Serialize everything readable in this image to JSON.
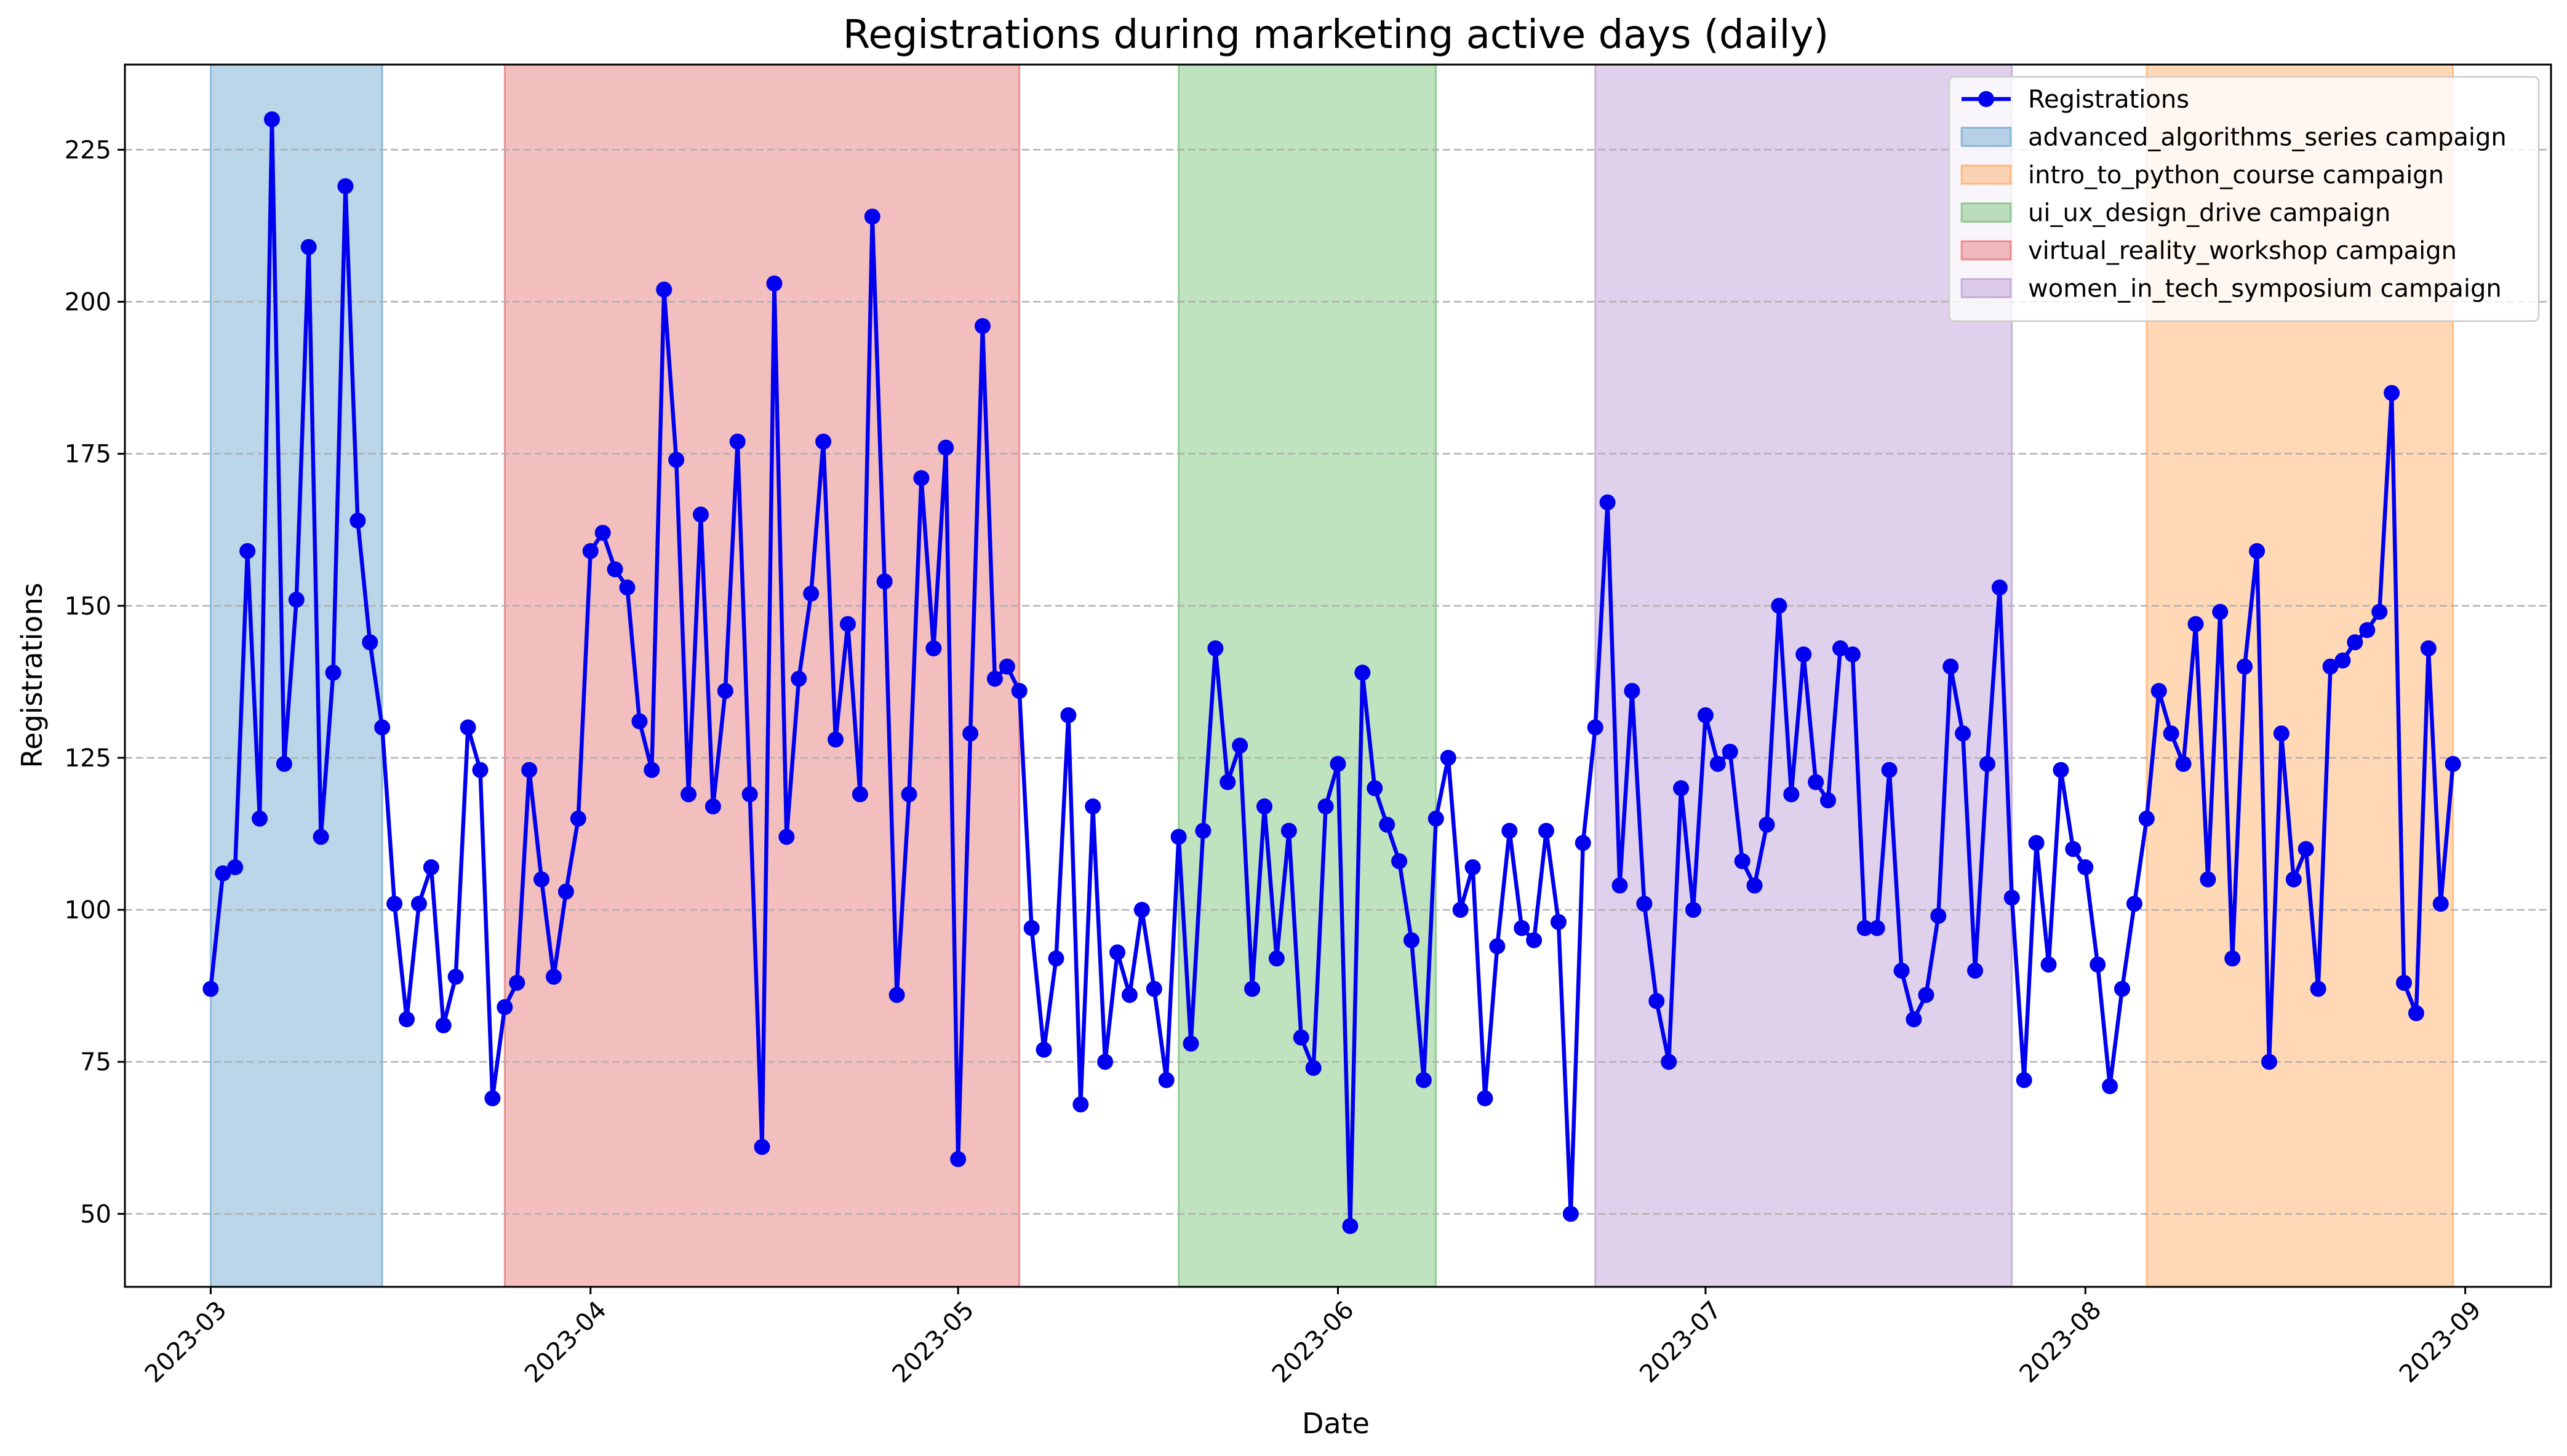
{
  "chart_data": {
    "type": "line",
    "title": "Registrations during marketing active days (daily)",
    "xlabel": "Date",
    "ylabel": "Registrations",
    "x_range": [
      "2023-02-22",
      "2023-09-08"
    ],
    "ylim": [
      38,
      239
    ],
    "grid": {
      "axis": "y",
      "style": "dashed"
    },
    "legend_position": "top-right",
    "x_ticks": [
      {
        "date": "2023-03-01",
        "label": "2023-03"
      },
      {
        "date": "2023-04-01",
        "label": "2023-04"
      },
      {
        "date": "2023-05-01",
        "label": "2023-05"
      },
      {
        "date": "2023-06-01",
        "label": "2023-06"
      },
      {
        "date": "2023-07-01",
        "label": "2023-07"
      },
      {
        "date": "2023-08-01",
        "label": "2023-08"
      },
      {
        "date": "2023-09-01",
        "label": "2023-09"
      }
    ],
    "y_ticks": [
      50,
      75,
      100,
      125,
      150,
      175,
      200,
      225
    ],
    "series": [
      {
        "name": "Registrations",
        "color": "#0000ee",
        "start_date": "2023-03-01",
        "values": [
          87,
          106,
          107,
          159,
          115,
          230,
          124,
          151,
          209,
          112,
          139,
          219,
          164,
          144,
          130,
          101,
          82,
          101,
          107,
          81,
          89,
          130,
          123,
          69,
          84,
          88,
          123,
          105,
          89,
          103,
          115,
          159,
          162,
          156,
          153,
          131,
          123,
          202,
          174,
          119,
          165,
          117,
          136,
          177,
          119,
          61,
          203,
          112,
          138,
          152,
          177,
          128,
          147,
          119,
          214,
          154,
          86,
          119,
          171,
          143,
          176,
          59,
          129,
          196,
          138,
          140,
          136,
          97,
          77,
          92,
          132,
          68,
          117,
          75,
          93,
          86,
          100,
          87,
          72,
          112,
          78,
          113,
          143,
          121,
          127,
          87,
          117,
          92,
          113,
          79,
          74,
          117,
          124,
          48,
          139,
          120,
          114,
          108,
          95,
          72,
          115,
          125,
          100,
          107,
          69,
          94,
          113,
          97,
          95,
          113,
          98,
          50,
          111,
          130,
          167,
          104,
          136,
          101,
          85,
          75,
          120,
          100,
          132,
          124,
          126,
          108,
          104,
          114,
          150,
          119,
          142,
          121,
          118,
          143,
          142,
          97,
          97,
          123,
          90,
          82,
          86,
          99,
          140,
          129,
          90,
          124,
          153,
          102,
          72,
          111,
          91,
          123,
          110,
          107,
          91,
          71,
          87,
          101,
          115,
          136,
          129,
          124,
          147,
          105,
          149,
          92,
          140,
          159,
          75,
          129,
          105,
          110,
          87,
          140,
          141,
          144,
          146,
          149,
          185,
          88,
          83,
          143,
          101,
          124
        ]
      }
    ],
    "campaigns": [
      {
        "name": "advanced_algorithms_series campaign",
        "start": "2023-03-01",
        "end": "2023-03-15",
        "color": "#1f77b4"
      },
      {
        "name": "intro_to_python_course campaign",
        "start": "2023-08-06",
        "end": "2023-08-31",
        "color": "#ff7f0e"
      },
      {
        "name": "ui_ux_design_drive campaign",
        "start": "2023-05-19",
        "end": "2023-06-09",
        "color": "#2ca02c"
      },
      {
        "name": "virtual_reality_workshop campaign",
        "start": "2023-03-25",
        "end": "2023-05-06",
        "color": "#d62728"
      },
      {
        "name": "women_in_tech_symposium campaign",
        "start": "2023-06-22",
        "end": "2023-07-26",
        "color": "#9467bd"
      }
    ]
  }
}
